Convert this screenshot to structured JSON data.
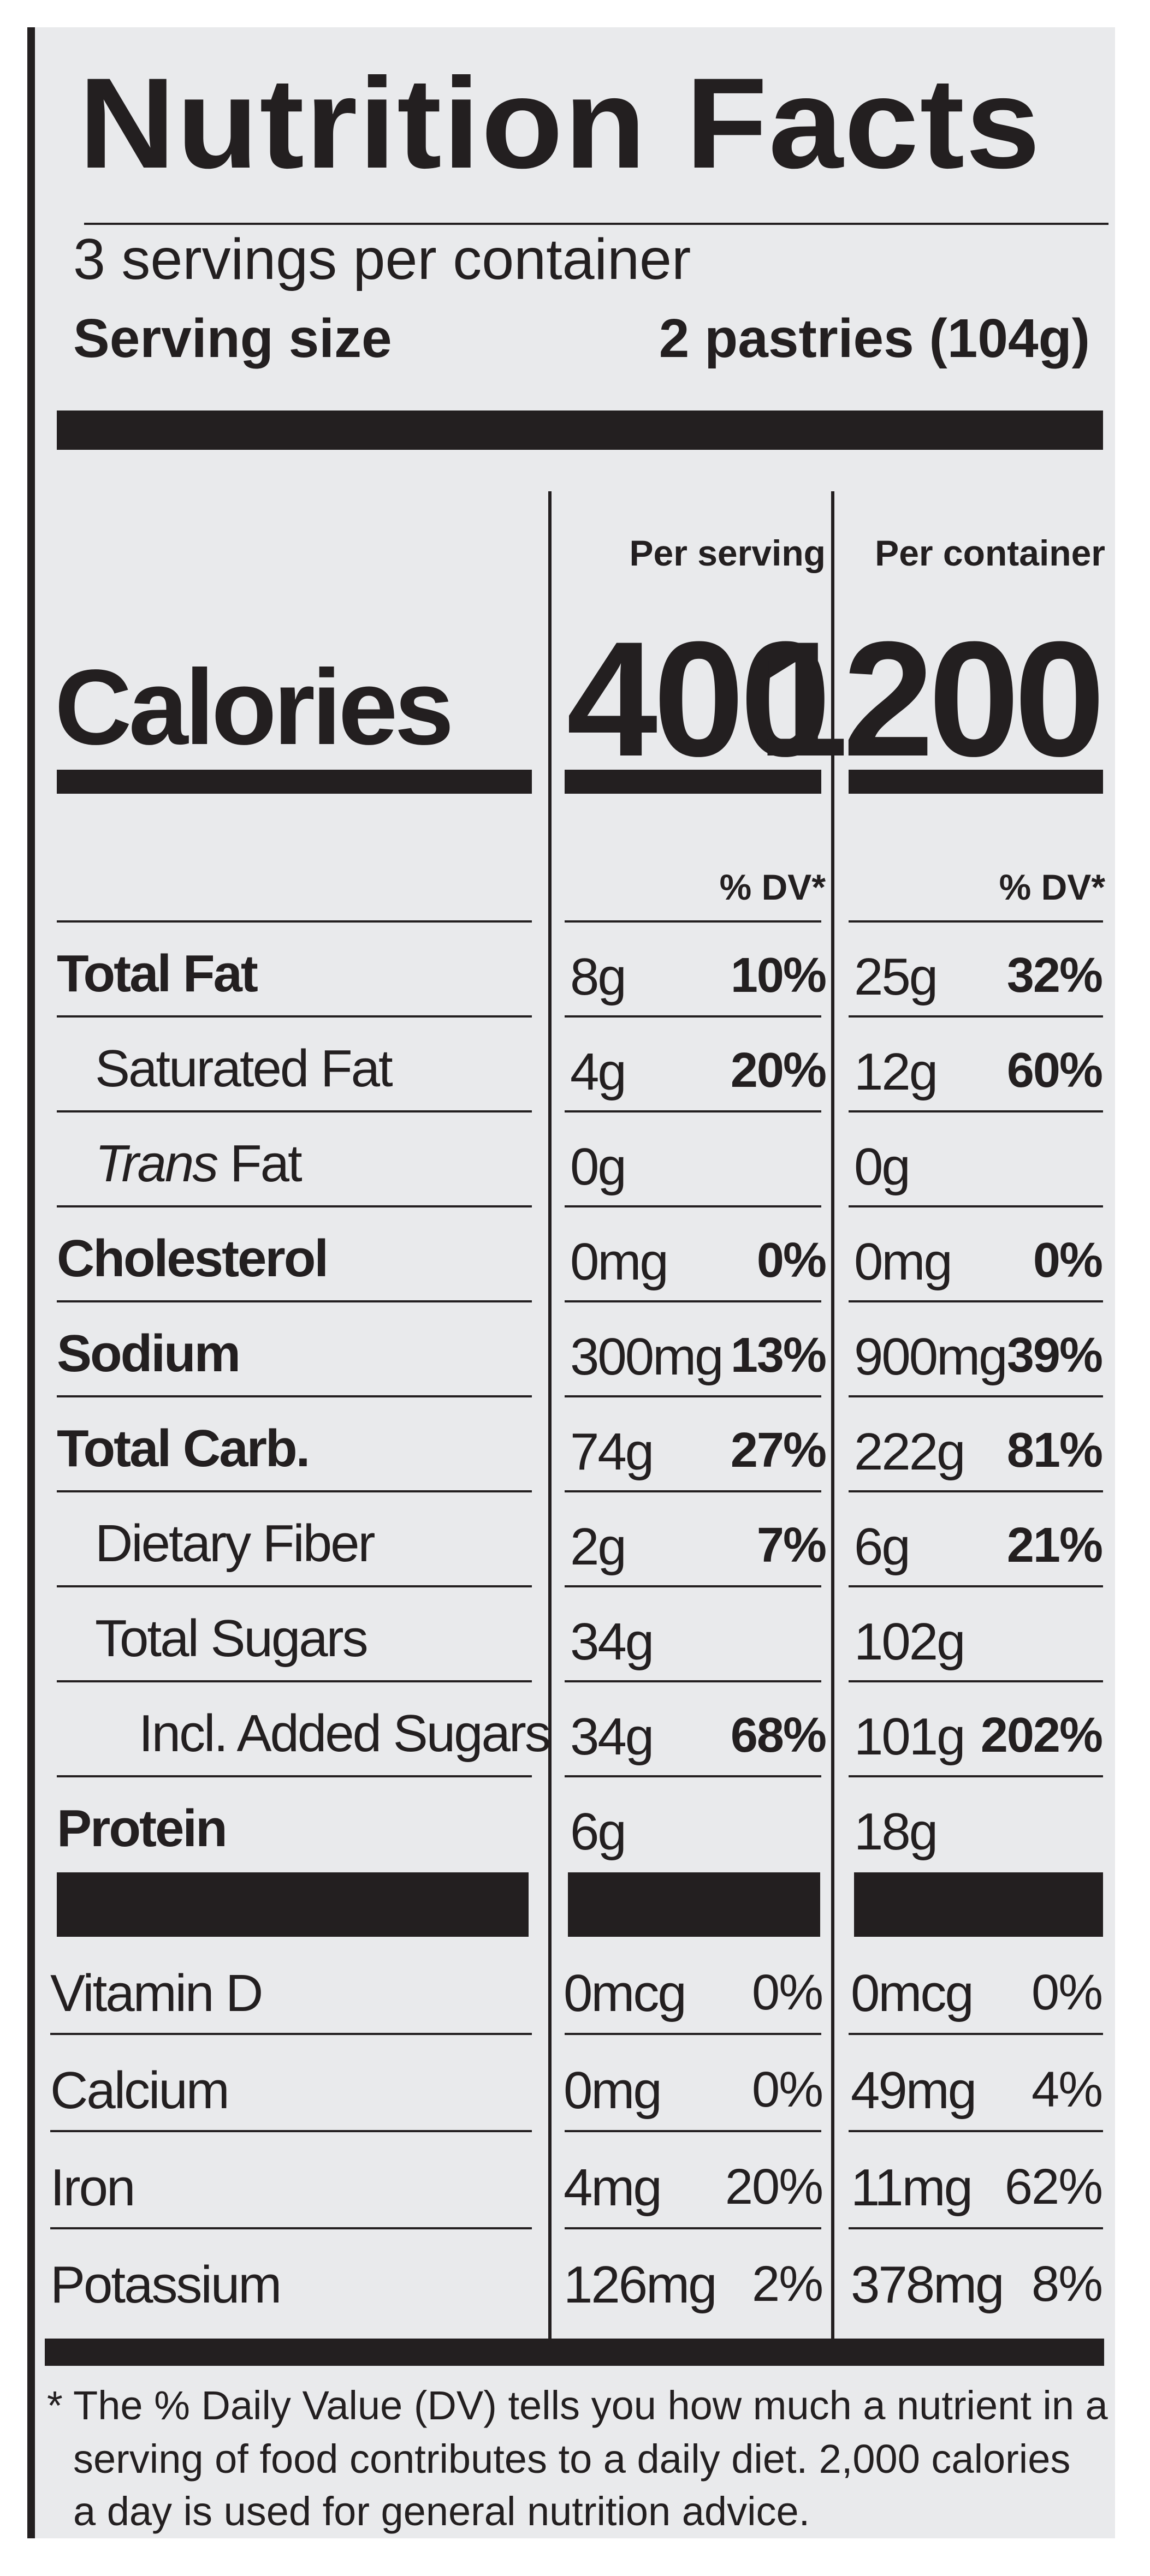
{
  "title": "Nutrition Facts",
  "servings_per_container": "3 servings per container",
  "serving_size_label": "Serving size",
  "serving_size_value": "2 pastries (104g)",
  "calories_label": "Calories",
  "per_serving_header": "Per serving",
  "per_container_header": "Per container",
  "calories_per_serving": "400",
  "calories_per_container": "1200",
  "dv_header": "% DV*",
  "nutrients": [
    {
      "name": "Total Fat",
      "bold": true,
      "indent": 0,
      "serving_amount": "8g",
      "serving_dv": "10%",
      "container_amount": "25g",
      "container_dv": "32%"
    },
    {
      "name": "Saturated Fat",
      "bold": false,
      "indent": 1,
      "serving_amount": "4g",
      "serving_dv": "20%",
      "container_amount": "12g",
      "container_dv": "60%"
    },
    {
      "name_italic": "Trans",
      "name": "Fat",
      "bold": false,
      "indent": 1,
      "serving_amount": "0g",
      "serving_dv": "",
      "container_amount": "0g",
      "container_dv": ""
    },
    {
      "name": "Cholesterol",
      "bold": true,
      "indent": 0,
      "serving_amount": "0mg",
      "serving_dv": "0%",
      "container_amount": "0mg",
      "container_dv": "0%"
    },
    {
      "name": "Sodium",
      "bold": true,
      "indent": 0,
      "serving_amount": "300mg",
      "serving_dv": "13%",
      "container_amount": "900mg",
      "container_dv": "39%"
    },
    {
      "name": "Total Carb.",
      "bold": true,
      "indent": 0,
      "serving_amount": "74g",
      "serving_dv": "27%",
      "container_amount": "222g",
      "container_dv": "81%"
    },
    {
      "name": "Dietary Fiber",
      "bold": false,
      "indent": 1,
      "serving_amount": "2g",
      "serving_dv": "7%",
      "container_amount": "6g",
      "container_dv": "21%"
    },
    {
      "name": "Total Sugars",
      "bold": false,
      "indent": 1,
      "serving_amount": "34g",
      "serving_dv": "",
      "container_amount": "102g",
      "container_dv": ""
    },
    {
      "name": "Incl. Added Sugars",
      "bold": false,
      "indent": 2,
      "serving_amount": "34g",
      "serving_dv": "68%",
      "container_amount": "101g",
      "container_dv": "202%"
    },
    {
      "name": "Protein",
      "bold": true,
      "indent": 0,
      "serving_amount": "6g",
      "serving_dv": "",
      "container_amount": "18g",
      "container_dv": ""
    }
  ],
  "vitamins": [
    {
      "name": "Vitamin D",
      "serving_amount": "0mcg",
      "serving_dv": "0%",
      "container_amount": "0mcg",
      "container_dv": "0%"
    },
    {
      "name": "Calcium",
      "serving_amount": "0mg",
      "serving_dv": "0%",
      "container_amount": "49mg",
      "container_dv": "4%"
    },
    {
      "name": "Iron",
      "serving_amount": "4mg",
      "serving_dv": "20%",
      "container_amount": "11mg",
      "container_dv": "62%"
    },
    {
      "name": "Potassium",
      "serving_amount": "126mg",
      "serving_dv": "2%",
      "container_amount": "378mg",
      "container_dv": "8%"
    }
  ],
  "footnote": [
    "* The % Daily Value (DV) tells you how much a nutrient in a",
    "serving of food contributes to a daily diet. 2,000 calories",
    "a day is used for general nutrition advice."
  ],
  "colors": {
    "ink": "#231f20",
    "background": "#e9eaec"
  }
}
